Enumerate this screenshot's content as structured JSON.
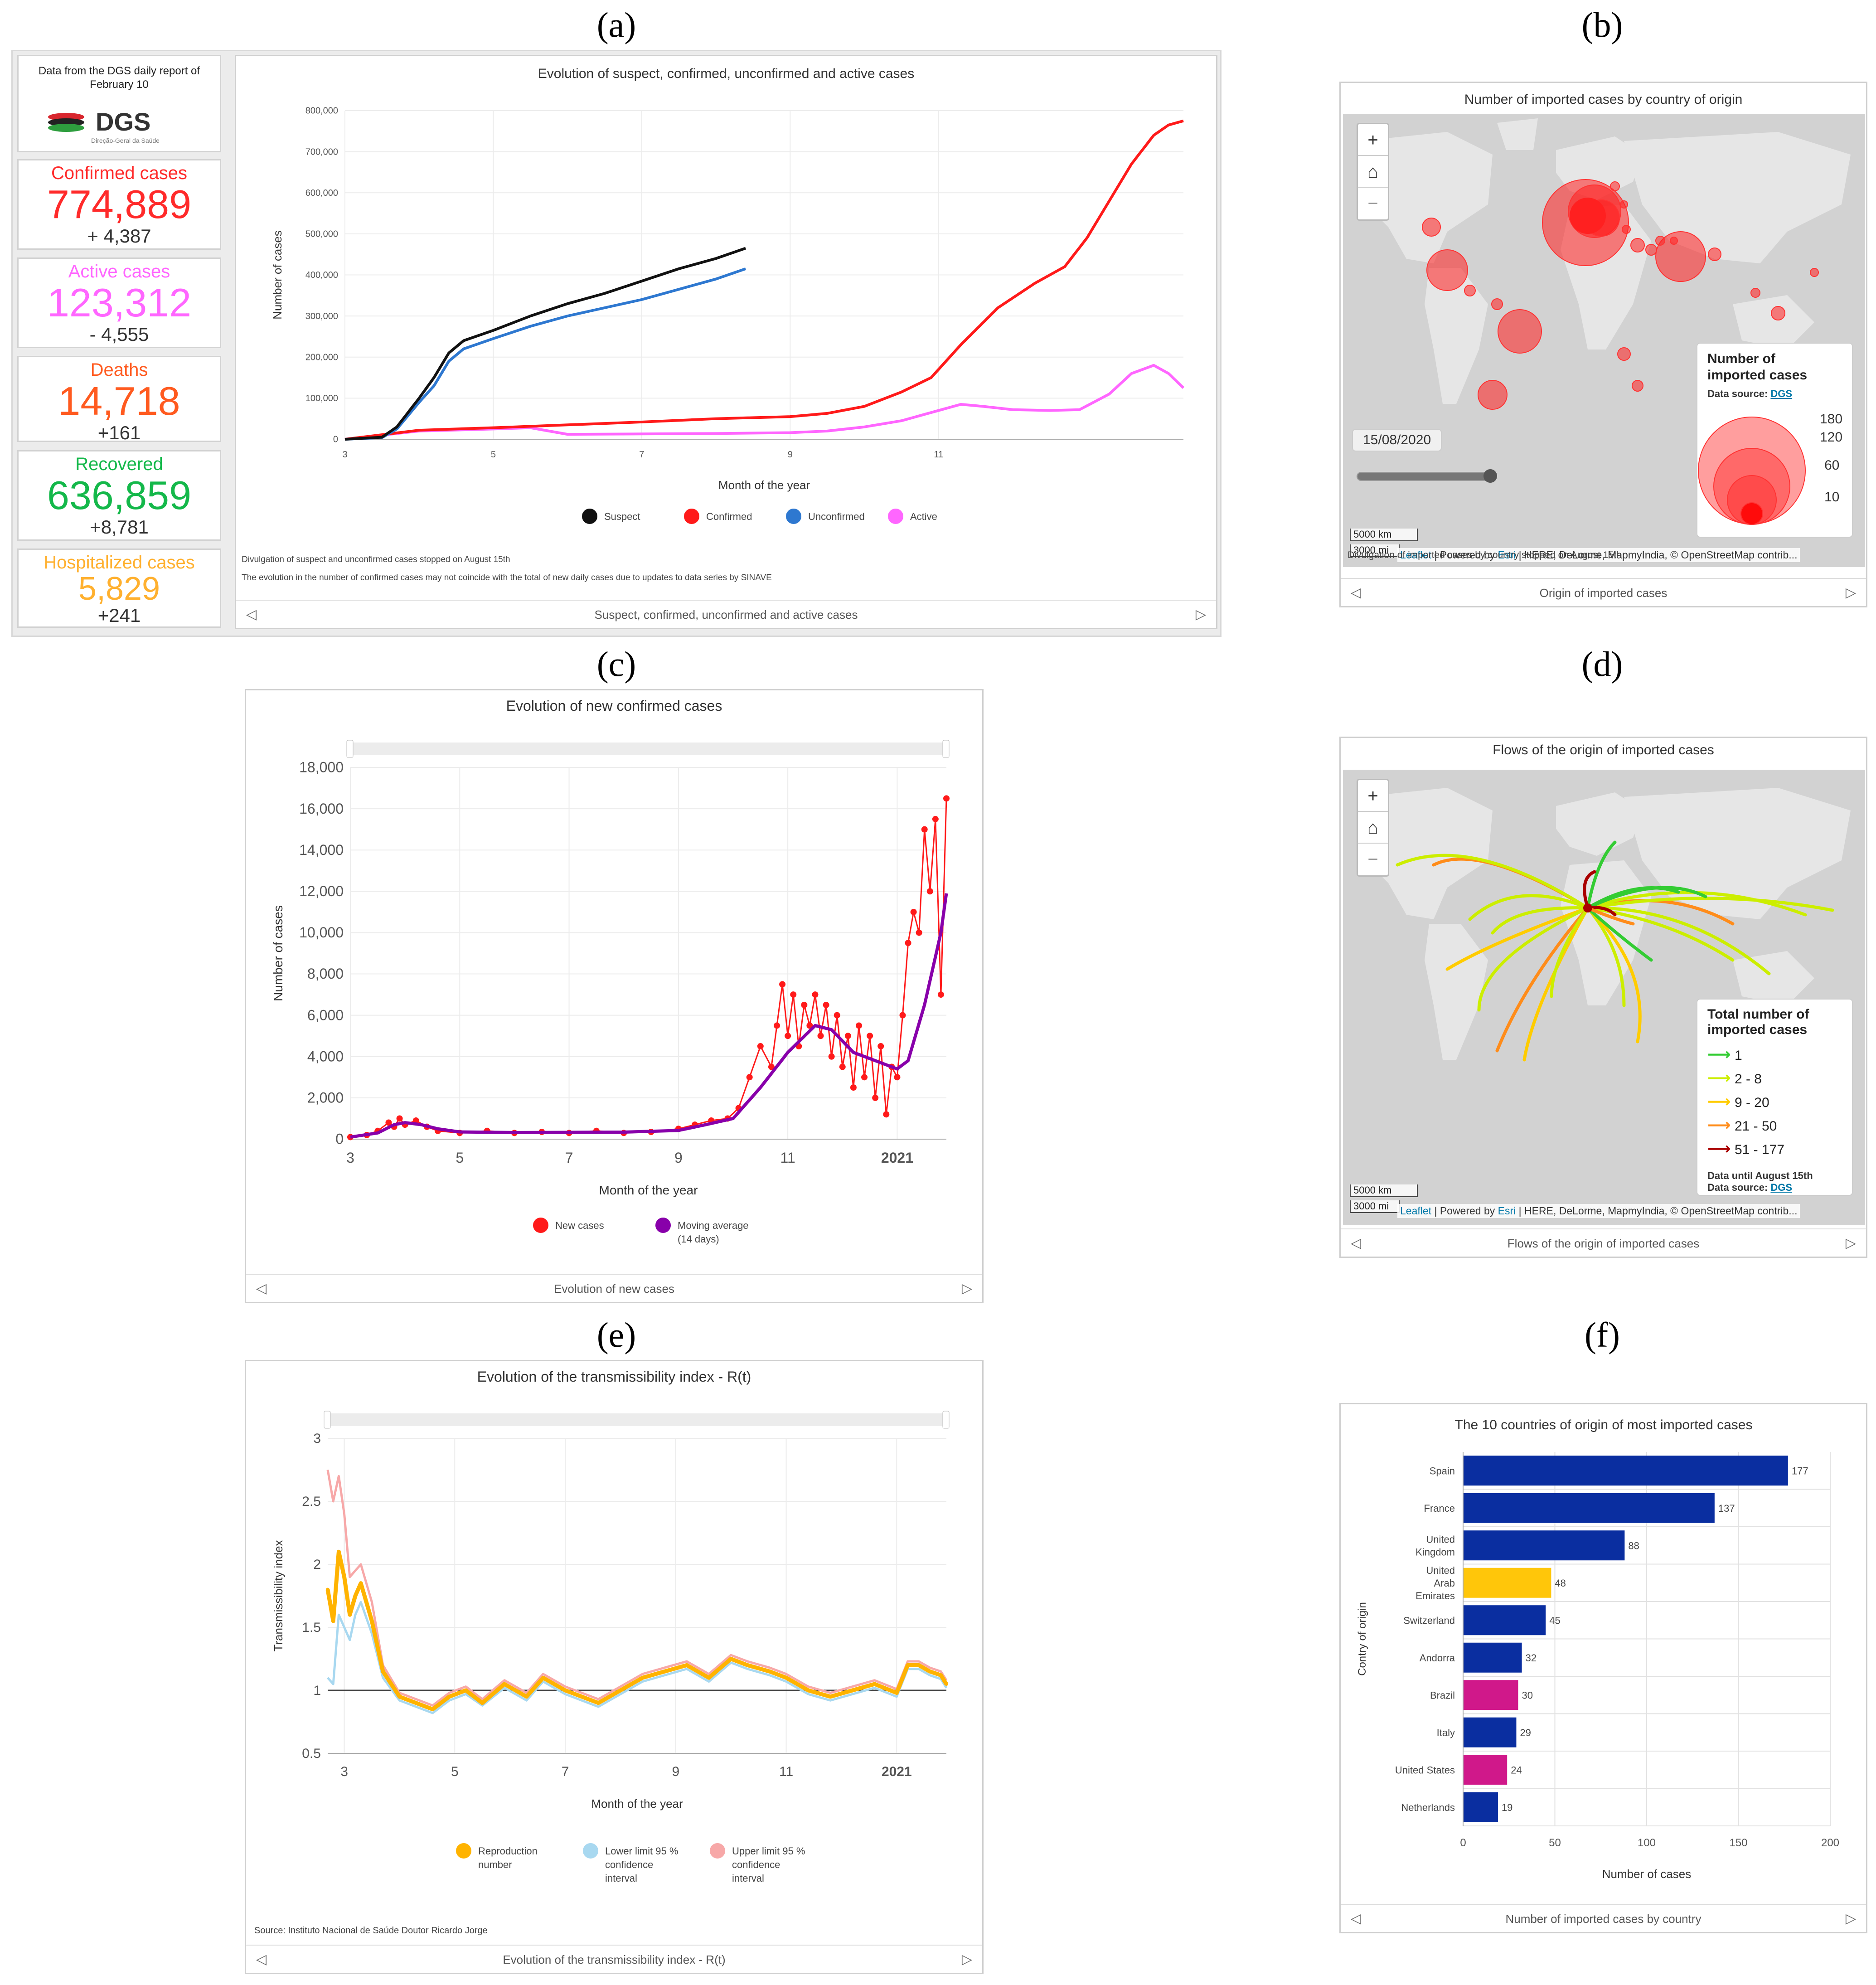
{
  "panel_labels": {
    "a": "(a)",
    "b": "(b)",
    "c": "(c)",
    "d": "(d)",
    "e": "(e)",
    "f": "(f)"
  },
  "panel_a": {
    "dgs_note": "Data from the DGS daily report of February 10",
    "dgs_logo": "DGS",
    "dgs_sub": "Direção-Geral da Saúde",
    "stats": [
      {
        "label": "Confirmed cases",
        "value": "774,889",
        "delta": "+ 4,387",
        "color": "#ff2a2a"
      },
      {
        "label": "Active cases",
        "value": "123,312",
        "delta": "- 4,555",
        "color": "#ff66ff"
      },
      {
        "label": "Deaths",
        "value": "14,718",
        "delta": "+161",
        "color": "#ff5a1f"
      },
      {
        "label": "Recovered",
        "value": "636,859",
        "delta": "+8,781",
        "color": "#14b84a"
      },
      {
        "label": "Hospitalized cases",
        "value": "5,829",
        "delta": "+241",
        "color": "#ffb02e"
      }
    ],
    "notes": [
      "Divulgation of suspect and unconfirmed cases stopped on August 15th",
      "The evolution in the number of confirmed cases may not coincide with the total of new daily cases due to updates to data series by SINAVE"
    ],
    "footer": "Suspect, confirmed, unconfirmed and active cases"
  },
  "panel_b": {
    "title": "Number of imported cases by country of origin",
    "date": "15/08/2020",
    "legend_title": "Number of imported cases",
    "legend_source_label": "Data source:",
    "legend_source_link": "DGS",
    "legend_values": [
      "180",
      "120",
      "60",
      "10"
    ],
    "scale_km": "5000 km",
    "scale_mi": "3000 mi",
    "attribution_leaflet": "Leaflet",
    "attribution_sep1": " | Powered by ",
    "attribution_esri": "Esri",
    "attribution_rest": " | HERE, DeLorme, MapmyIndia, © OpenStreetMap contrib...",
    "note": "Divulgation of imported cases by country stopped on August 15th",
    "footer": "Origin of imported cases"
  },
  "panel_d": {
    "title": "Flows of the origin of imported cases",
    "legend_title": "Total number of imported cases",
    "legend_items": [
      {
        "label": "1",
        "color": "#33cc33"
      },
      {
        "label": "2 - 8",
        "color": "#ccee00"
      },
      {
        "label": "9 - 20",
        "color": "#ffcc00"
      },
      {
        "label": "21 - 50",
        "color": "#ff8c1a"
      },
      {
        "label": "51 - 177",
        "color": "#aa0000"
      }
    ],
    "legend_note": "Data until August 15th",
    "legend_source_label": "Data source:",
    "legend_source_link": "DGS",
    "scale_km": "5000 km",
    "scale_mi": "3000 mi",
    "attribution_leaflet": "Leaflet",
    "attribution_sep1": " | Powered by ",
    "attribution_esri": "Esri",
    "attribution_rest": " | HERE, DeLorme, MapmyIndia, © OpenStreetMap contrib...",
    "footer": "Flows of the origin of imported cases"
  },
  "panel_c_footer": "Evolution of new cases",
  "panel_e_footer": "Evolution of the transmissibility index - R(t)",
  "panel_e_source": "Source: Instituto Nacional de Saúde Doutor Ricardo Jorge",
  "panel_f_footer": "Number of imported cases by country",
  "icons": {
    "zoom_in": "plus-icon",
    "home": "home-icon",
    "zoom_out": "minus-icon",
    "prev": "chevron-left-icon",
    "next": "chevron-right-icon"
  },
  "chart_data": [
    {
      "id": "a",
      "type": "line",
      "title": "Evolution of suspect, confirmed, unconfirmed and active cases",
      "xlabel": "Month of the year",
      "ylabel": "Number of cases",
      "x_ticks": [
        "3",
        "5",
        "7",
        "9",
        "11"
      ],
      "xlim": [
        3,
        14.3
      ],
      "ylim": [
        0,
        800000
      ],
      "y_ticks": [
        "0",
        "100,000",
        "200,000",
        "300,000",
        "400,000",
        "500,000",
        "600,000",
        "700,000",
        "800,000"
      ],
      "series": [
        {
          "name": "Suspect",
          "color": "#111111",
          "x": [
            3,
            3.5,
            3.7,
            4,
            4.2,
            4.4,
            4.6,
            5,
            5.5,
            6,
            6.5,
            7,
            7.5,
            8,
            8.4
          ],
          "y": [
            0,
            5000,
            30000,
            100000,
            150000,
            210000,
            240000,
            265000,
            300000,
            330000,
            355000,
            385000,
            415000,
            440000,
            465000
          ]
        },
        {
          "name": "Confirmed",
          "color": "#ff1a1a",
          "x": [
            3,
            4,
            5,
            6,
            7,
            8,
            9,
            9.5,
            10,
            10.5,
            10.9,
            11.3,
            11.8,
            12.3,
            12.7,
            13,
            13.3,
            13.6,
            13.9,
            14.1,
            14.3
          ],
          "y": [
            0,
            22000,
            28000,
            35000,
            42000,
            50000,
            55000,
            63000,
            80000,
            115000,
            150000,
            230000,
            320000,
            380000,
            420000,
            490000,
            580000,
            670000,
            740000,
            765000,
            775000
          ]
        },
        {
          "name": "Unconfirmed",
          "color": "#2e78d0",
          "x": [
            3,
            3.5,
            3.7,
            4,
            4.2,
            4.4,
            4.6,
            5,
            5.5,
            6,
            6.5,
            7,
            7.5,
            8,
            8.4
          ],
          "y": [
            0,
            4000,
            25000,
            90000,
            130000,
            190000,
            220000,
            245000,
            275000,
            300000,
            320000,
            340000,
            365000,
            390000,
            415000
          ]
        },
        {
          "name": "Active",
          "color": "#ff66ff",
          "x": [
            3,
            4,
            5,
            5.5,
            6,
            7,
            8,
            9,
            9.5,
            10,
            10.5,
            11,
            11.3,
            11.6,
            12,
            12.5,
            12.9,
            13.3,
            13.6,
            13.9,
            14.1,
            14.3
          ],
          "y": [
            0,
            20000,
            25000,
            28000,
            12000,
            13000,
            14000,
            16000,
            20000,
            30000,
            45000,
            70000,
            85000,
            80000,
            72000,
            70000,
            72000,
            110000,
            160000,
            180000,
            160000,
            125000
          ]
        }
      ]
    },
    {
      "id": "c",
      "type": "line",
      "title": "Evolution of new confirmed cases",
      "xlabel": "Month of the year",
      "ylabel": "Number of cases",
      "x_ticks": [
        "3",
        "5",
        "7",
        "9",
        "11",
        "2021"
      ],
      "xlim": [
        3,
        13.9
      ],
      "ylim": [
        0,
        18000
      ],
      "y_ticks": [
        "0",
        "2,000",
        "4,000",
        "6,000",
        "8,000",
        "10,000",
        "12,000",
        "14,000",
        "16,000",
        "18,000"
      ],
      "series": [
        {
          "name": "New cases",
          "color": "#ff1a1a",
          "x": [
            3,
            3.3,
            3.5,
            3.7,
            3.8,
            3.9,
            4,
            4.2,
            4.4,
            4.6,
            5,
            5.5,
            6,
            6.5,
            7,
            7.5,
            8,
            8.5,
            9,
            9.3,
            9.6,
            9.9,
            10.1,
            10.3,
            10.5,
            10.7,
            10.8,
            10.9,
            11,
            11.1,
            11.2,
            11.3,
            11.4,
            11.5,
            11.6,
            11.7,
            11.8,
            11.9,
            12,
            12.1,
            12.2,
            12.3,
            12.4,
            12.5,
            12.6,
            12.7,
            12.8,
            12.9,
            13,
            13.1,
            13.2,
            13.3,
            13.4,
            13.5,
            13.6,
            13.7,
            13.8,
            13.9
          ],
          "y": [
            100,
            200,
            400,
            800,
            600,
            1000,
            700,
            900,
            600,
            400,
            300,
            400,
            300,
            350,
            300,
            400,
            300,
            350,
            500,
            700,
            900,
            1000,
            1500,
            3000,
            4500,
            3500,
            5500,
            7500,
            5000,
            7000,
            4500,
            6500,
            5500,
            7000,
            5000,
            6500,
            4000,
            6000,
            3500,
            5000,
            2500,
            5500,
            3000,
            5000,
            2000,
            4500,
            1200,
            3500,
            3000,
            6000,
            9500,
            11000,
            10000,
            15000,
            12000,
            15500,
            7000,
            16500
          ]
        },
        {
          "name": "Moving average (14 days)",
          "color": "#8800aa",
          "x": [
            3,
            3.5,
            3.8,
            4,
            4.3,
            4.6,
            5,
            6,
            7,
            8,
            9,
            9.5,
            10,
            10.5,
            11,
            11.5,
            11.8,
            12.2,
            12.6,
            13,
            13.2,
            13.5,
            13.8,
            13.9
          ],
          "y": [
            100,
            300,
            700,
            800,
            700,
            500,
            350,
            320,
            330,
            340,
            420,
            700,
            1000,
            2500,
            4200,
            5500,
            5300,
            4200,
            3800,
            3400,
            3800,
            6500,
            10000,
            11900
          ]
        }
      ]
    },
    {
      "id": "e",
      "type": "line",
      "title": "Evolution of the transmissibility index - R(t)",
      "xlabel": "Month of the year",
      "ylabel": "Transmissibility index",
      "x_ticks": [
        "3",
        "5",
        "7",
        "9",
        "11",
        "2021"
      ],
      "xlim": [
        2.7,
        13.9
      ],
      "ylim": [
        0.5,
        3
      ],
      "y_ticks": [
        "0.5",
        "1",
        "1.5",
        "2",
        "2.5",
        "3"
      ],
      "reference_line": 1,
      "series": [
        {
          "name": "Reproduction number",
          "color": "#ffb300",
          "x": [
            2.7,
            2.8,
            2.9,
            3,
            3.1,
            3.2,
            3.3,
            3.5,
            3.7,
            4,
            4.3,
            4.6,
            4.9,
            5.2,
            5.5,
            5.9,
            6.3,
            6.6,
            7,
            7.3,
            7.6,
            8,
            8.4,
            8.8,
            9.2,
            9.6,
            10,
            10.3,
            10.7,
            11,
            11.4,
            11.8,
            12.2,
            12.6,
            13,
            13.2,
            13.4,
            13.6,
            13.8,
            13.9
          ],
          "y": [
            1.8,
            1.55,
            2.1,
            1.9,
            1.6,
            1.75,
            1.85,
            1.55,
            1.15,
            0.95,
            0.9,
            0.85,
            0.95,
            1.0,
            0.9,
            1.05,
            0.95,
            1.1,
            1.0,
            0.95,
            0.9,
            1.0,
            1.1,
            1.15,
            1.2,
            1.1,
            1.25,
            1.2,
            1.15,
            1.1,
            1.0,
            0.95,
            1.0,
            1.05,
            0.98,
            1.2,
            1.2,
            1.15,
            1.12,
            1.05
          ]
        },
        {
          "name": "Lower limit 95 % confidence interval",
          "color": "#a8d8f0",
          "x": [
            2.7,
            2.8,
            2.9,
            3,
            3.1,
            3.2,
            3.3,
            3.5,
            3.7,
            4,
            4.3,
            4.6,
            4.9,
            5.2,
            5.5,
            5.9,
            6.3,
            6.6,
            7,
            7.3,
            7.6,
            8,
            8.4,
            8.8,
            9.2,
            9.6,
            10,
            10.3,
            10.7,
            11,
            11.4,
            11.8,
            12.2,
            12.6,
            13,
            13.2,
            13.4,
            13.6,
            13.8,
            13.9
          ],
          "y": [
            1.1,
            1.05,
            1.6,
            1.5,
            1.4,
            1.6,
            1.7,
            1.45,
            1.1,
            0.92,
            0.87,
            0.82,
            0.92,
            0.97,
            0.88,
            1.02,
            0.92,
            1.07,
            0.97,
            0.92,
            0.87,
            0.97,
            1.07,
            1.12,
            1.17,
            1.07,
            1.22,
            1.17,
            1.12,
            1.07,
            0.97,
            0.92,
            0.97,
            1.02,
            0.95,
            1.17,
            1.17,
            1.12,
            1.09,
            1.02
          ]
        },
        {
          "name": "Upper limit 95 % confidence interval",
          "color": "#f7a8a8",
          "x": [
            2.7,
            2.8,
            2.9,
            3,
            3.1,
            3.2,
            3.3,
            3.5,
            3.7,
            4,
            4.3,
            4.6,
            4.9,
            5.2,
            5.5,
            5.9,
            6.3,
            6.6,
            7,
            7.3,
            7.6,
            8,
            8.4,
            8.8,
            9.2,
            9.6,
            10,
            10.3,
            10.7,
            11,
            11.4,
            11.8,
            12.2,
            12.6,
            13,
            13.2,
            13.4,
            13.6,
            13.8,
            13.9
          ],
          "y": [
            2.75,
            2.5,
            2.7,
            2.4,
            1.9,
            1.95,
            2.0,
            1.7,
            1.2,
            0.98,
            0.93,
            0.88,
            0.98,
            1.03,
            0.93,
            1.08,
            0.98,
            1.13,
            1.03,
            0.98,
            0.93,
            1.03,
            1.13,
            1.18,
            1.23,
            1.13,
            1.28,
            1.23,
            1.18,
            1.13,
            1.03,
            0.98,
            1.03,
            1.08,
            1.01,
            1.23,
            1.23,
            1.18,
            1.15,
            1.08
          ]
        }
      ]
    },
    {
      "id": "f",
      "type": "bar",
      "orientation": "horizontal",
      "title": "The 10 countries of origin of most imported cases",
      "xlabel": "Number of cases",
      "ylabel": "Contry of origin",
      "xlim": [
        0,
        200
      ],
      "x_ticks": [
        "0",
        "50",
        "100",
        "150",
        "200"
      ],
      "categories": [
        "Spain",
        "France",
        "United Kingdom",
        "United Arab Emirates",
        "Switzerland",
        "Andorra",
        "Brazil",
        "Italy",
        "United States",
        "Netherlands"
      ],
      "values": [
        177,
        137,
        88,
        48,
        45,
        32,
        30,
        29,
        24,
        19
      ],
      "colors": [
        "#0a2ea0",
        "#0a2ea0",
        "#0a2ea0",
        "#ffc60a",
        "#0a2ea0",
        "#0a2ea0",
        "#d0188a",
        "#0a2ea0",
        "#d0188a",
        "#0a2ea0"
      ]
    }
  ]
}
